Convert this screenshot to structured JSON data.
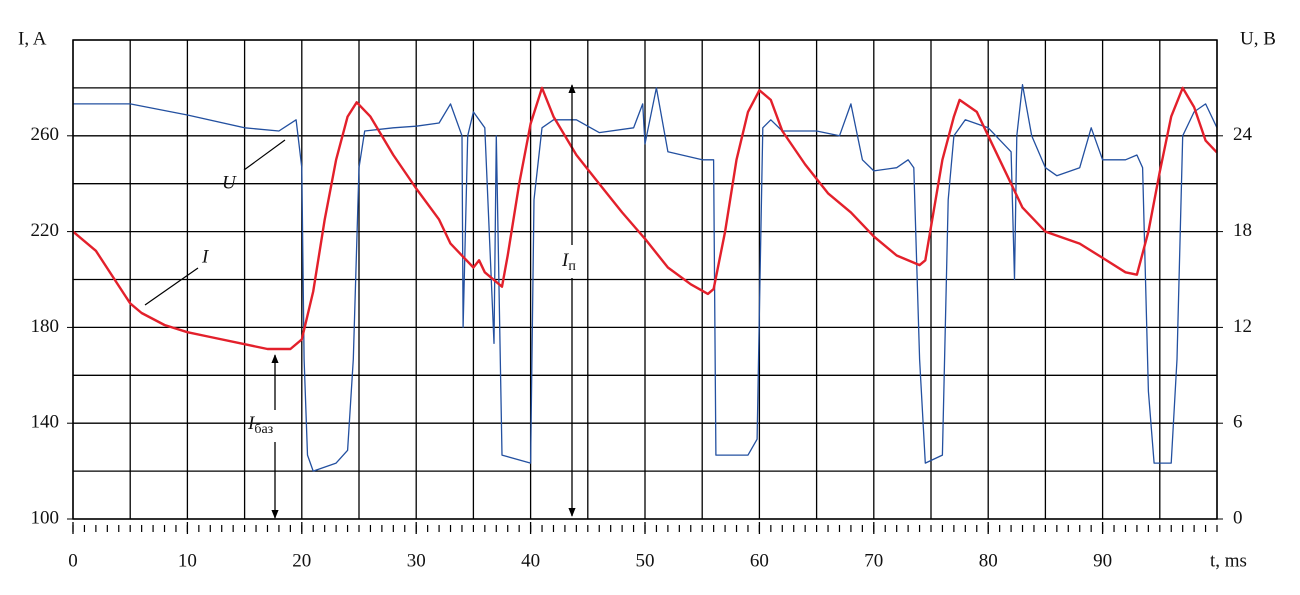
{
  "chart_data": {
    "type": "line",
    "xlabel": "t, ms",
    "ylabel": "I, A",
    "y2label": "U, B",
    "xlim": [
      0,
      100
    ],
    "xticks": [
      0,
      10,
      20,
      30,
      40,
      50,
      60,
      70,
      80,
      90
    ],
    "xgrid": [
      0,
      5,
      10,
      15,
      20,
      25,
      30,
      35,
      40,
      45,
      50,
      55,
      60,
      65,
      70,
      75,
      80,
      85,
      90,
      95,
      100
    ],
    "x_minor_step": 1,
    "ylim": [
      100,
      300
    ],
    "yticks": [
      100,
      140,
      180,
      220,
      260
    ],
    "ygrid": [
      100,
      120,
      140,
      160,
      180,
      200,
      220,
      240,
      260,
      280,
      300
    ],
    "y2lim": [
      0,
      30
    ],
    "y2ticks": [
      0,
      6,
      12,
      18,
      24
    ],
    "grid": true,
    "series": [
      {
        "name": "I",
        "color": "#e3202b",
        "x": [
          0,
          2,
          5,
          6,
          8,
          10,
          12,
          15,
          17,
          19,
          20,
          21,
          22,
          23,
          24,
          24.8,
          26,
          28,
          30,
          32,
          33,
          35,
          35.5,
          36,
          37,
          37.5,
          38,
          39,
          40,
          41,
          42,
          44,
          46,
          48,
          50,
          52,
          54,
          55.5,
          56,
          57,
          58,
          59,
          60,
          61,
          62,
          64,
          66,
          68,
          70,
          72,
          74,
          74.5,
          75,
          76,
          77,
          77.5,
          79,
          80,
          82,
          83,
          85,
          88,
          90,
          92,
          93,
          94,
          95,
          96,
          97,
          98,
          99,
          100
        ],
        "values": [
          220,
          212,
          190,
          186,
          181,
          178,
          176,
          173,
          171,
          171,
          175,
          195,
          225,
          250,
          268,
          274,
          268,
          252,
          238,
          225,
          215,
          205,
          208,
          203,
          199,
          197,
          210,
          240,
          265,
          280,
          268,
          252,
          240,
          228,
          217,
          205,
          198,
          194,
          196,
          220,
          250,
          270,
          279,
          275,
          262,
          248,
          236,
          228,
          218,
          210,
          206,
          208,
          222,
          250,
          268,
          275,
          270,
          260,
          240,
          230,
          220,
          215,
          209,
          203,
          202,
          220,
          245,
          268,
          280,
          272,
          258,
          253
        ]
      },
      {
        "name": "U",
        "color": "#2350a0",
        "axis": "y2",
        "x": [
          0,
          5,
          10,
          15,
          18,
          19.5,
          20,
          20.2,
          20.5,
          21,
          23,
          24,
          24.5,
          25,
          25.5,
          28,
          30,
          32,
          33,
          34,
          34.1,
          34.5,
          35,
          36,
          36.8,
          37,
          37.5,
          40,
          40.3,
          41,
          42,
          44,
          46,
          49,
          49.8,
          50,
          51,
          52,
          55,
          56,
          56.2,
          59,
          59.8,
          60,
          60.3,
          61,
          62,
          65,
          67,
          68,
          69,
          70,
          72,
          73,
          73.5,
          74,
          74.5,
          76,
          76.5,
          77,
          78,
          80,
          82,
          82.3,
          82.5,
          83,
          83.8,
          85,
          86,
          88,
          89,
          90,
          92,
          93,
          93.5,
          94,
          94.5,
          96,
          96.5,
          97,
          98,
          99,
          100
        ],
        "values": [
          26,
          26,
          25.3,
          24.5,
          24.3,
          25,
          22,
          10,
          4,
          3,
          3.5,
          4.3,
          10,
          22,
          24.3,
          24.5,
          24.6,
          24.8,
          26,
          24,
          12,
          24,
          25.5,
          24.5,
          11,
          24,
          4,
          3.5,
          20,
          24.5,
          25,
          25,
          24.2,
          24.5,
          26,
          23.5,
          27,
          23,
          22.5,
          22.5,
          4,
          4,
          5,
          13,
          24.5,
          25,
          24.3,
          24.3,
          24,
          26,
          22.5,
          21.8,
          22,
          22.5,
          22,
          10,
          3.5,
          4,
          20,
          24,
          25,
          24.5,
          23,
          15,
          24,
          27.2,
          24,
          22,
          21.5,
          22,
          24.5,
          22.5,
          22.5,
          22.8,
          22,
          8,
          3.5,
          3.5,
          10,
          24,
          25.5,
          26,
          24.5
        ]
      }
    ],
    "annotations": [
      {
        "text": "U"
      },
      {
        "text": "I"
      },
      {
        "text": "I",
        "subscript": "баз"
      },
      {
        "text": "I",
        "subscript": "п"
      }
    ]
  }
}
